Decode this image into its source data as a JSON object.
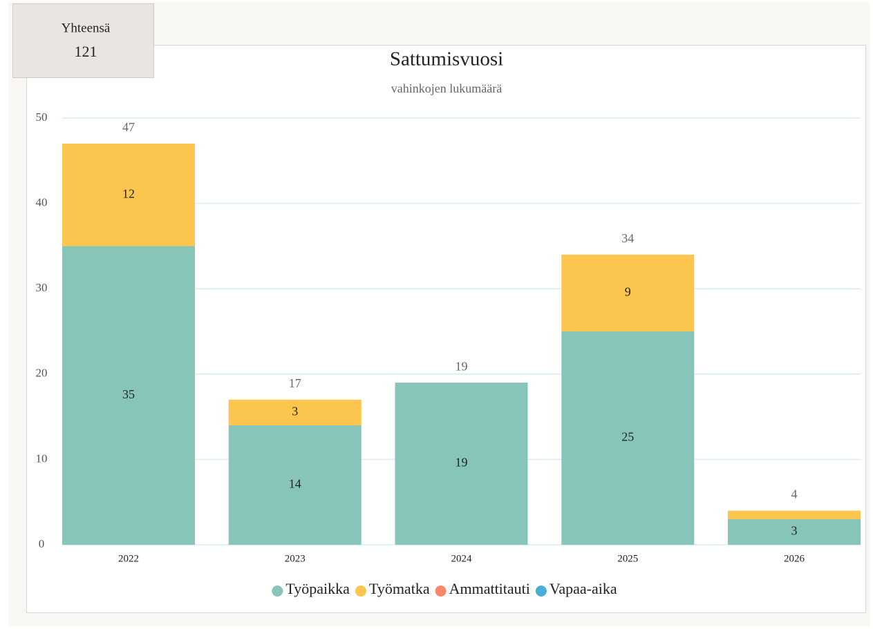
{
  "summary": {
    "label": "Yhteensä",
    "value": 121
  },
  "chart_data": {
    "type": "stacked_bar",
    "title": "Sattumisvuosi",
    "subtitle": "vahinkojen lukumäärä",
    "categories": [
      "2022",
      "2023",
      "2024",
      "2025",
      "2026"
    ],
    "series": [
      {
        "name": "Työpaikka",
        "color": "#87c5b8",
        "values": [
          35,
          14,
          19,
          25,
          3
        ]
      },
      {
        "name": "Työmatka",
        "color": "#fbc54e",
        "values": [
          12,
          3,
          0,
          9,
          1
        ],
        "value_labels": [
          "12",
          "3",
          null,
          "9",
          null
        ]
      },
      {
        "name": "Ammattitauti",
        "color": "#f6896a",
        "values": [
          0,
          0,
          0,
          0,
          0
        ]
      },
      {
        "name": "Vapaa-aika",
        "color": "#4aaed6",
        "values": [
          0,
          0,
          0,
          0,
          0
        ]
      }
    ],
    "totals": [
      47,
      17,
      19,
      34,
      4
    ],
    "ylim": [
      0,
      50
    ],
    "yticks": [
      0,
      10,
      20,
      30,
      40,
      50
    ],
    "grid": true,
    "legend": "bottom"
  }
}
